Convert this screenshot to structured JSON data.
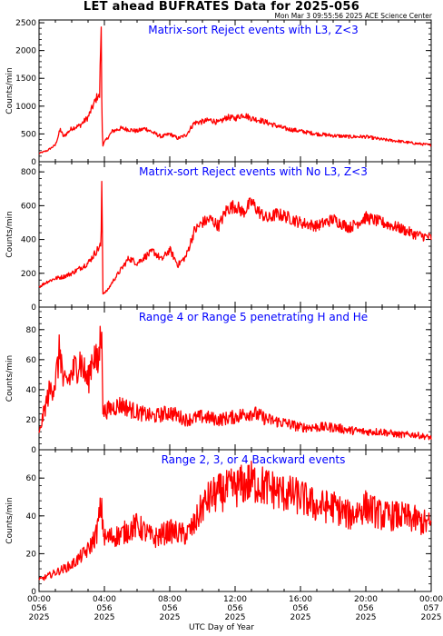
{
  "title": "LET ahead BUFRATES Data for 2025-056",
  "timestamp": "Mon Mar  3 09:55:56 2025 ACE Science Center",
  "xaxis_title": "UTC Day of Year",
  "colors": {
    "trace": "#ff0000",
    "panel_title": "#0000ff",
    "axes": "#000000",
    "background": "#ffffff"
  },
  "chart_data": [
    {
      "type": "line",
      "title": "Matrix-sort Reject events with L3, Z<3",
      "ylabel": "Counts/min",
      "ylim": [
        0,
        2550
      ],
      "yticks": [
        0,
        500,
        1000,
        1500,
        2000,
        2500
      ],
      "x_unit": "hours UTC",
      "x": [
        0,
        0.5,
        1,
        1.3,
        1.5,
        2,
        2.5,
        3,
        3.3,
        3.6,
        3.7,
        3.8,
        3.85,
        3.9,
        4,
        4.5,
        5,
        5.5,
        6,
        6.5,
        7,
        7.5,
        8,
        8.5,
        9,
        9.5,
        10,
        10.5,
        11,
        11.5,
        12,
        12.5,
        13,
        13.5,
        14,
        14.5,
        15,
        16,
        17,
        18,
        19,
        20,
        21,
        22,
        23,
        24
      ],
      "values": [
        150,
        200,
        300,
        580,
        450,
        600,
        650,
        800,
        1000,
        1200,
        1150,
        2520,
        800,
        300,
        350,
        550,
        600,
        580,
        550,
        600,
        520,
        450,
        500,
        420,
        480,
        700,
        720,
        750,
        700,
        800,
        780,
        850,
        780,
        750,
        700,
        650,
        600,
        550,
        500,
        470,
        450,
        450,
        400,
        370,
        330,
        300
      ]
    },
    {
      "type": "line",
      "title": "Matrix-sort Reject events with No L3, Z<3",
      "ylabel": "Counts/min",
      "ylim": [
        0,
        860
      ],
      "yticks": [
        0,
        200,
        400,
        600,
        800
      ],
      "x_unit": "hours UTC",
      "x": [
        0,
        0.5,
        1,
        1.5,
        2,
        2.5,
        3,
        3.5,
        3.8,
        3.85,
        3.9,
        4.2,
        4.5,
        5,
        5.5,
        6,
        6.5,
        7,
        7.5,
        8,
        8.5,
        9,
        9.5,
        10,
        10.5,
        11,
        11.5,
        12,
        12.5,
        13,
        13.5,
        14,
        14.5,
        15,
        16,
        17,
        18,
        19,
        20,
        21,
        22,
        23,
        24
      ],
      "values": [
        120,
        150,
        170,
        180,
        200,
        230,
        260,
        330,
        370,
        850,
        80,
        100,
        150,
        220,
        290,
        260,
        300,
        330,
        280,
        340,
        250,
        300,
        450,
        500,
        520,
        480,
        580,
        600,
        560,
        620,
        560,
        520,
        550,
        540,
        500,
        480,
        520,
        470,
        530,
        500,
        470,
        430,
        410
      ]
    },
    {
      "type": "line",
      "title": "Range 4 or Range 5 penetrating H and He",
      "ylabel": "Counts/min",
      "ylim": [
        0,
        95
      ],
      "yticks": [
        0,
        20,
        40,
        60,
        80
      ],
      "x_unit": "hours UTC",
      "x": [
        0,
        0.3,
        0.6,
        1,
        1.3,
        1.5,
        2,
        2.5,
        3,
        3.3,
        3.6,
        3.8,
        3.85,
        3.9,
        4.5,
        5,
        6,
        7,
        8,
        9,
        10,
        11,
        12,
        13,
        14,
        15,
        16,
        17,
        18,
        19,
        20,
        21,
        22,
        23,
        24
      ],
      "values": [
        10,
        25,
        38,
        45,
        68,
        42,
        50,
        60,
        45,
        65,
        55,
        80,
        95,
        25,
        28,
        30,
        25,
        22,
        25,
        20,
        22,
        20,
        22,
        25,
        20,
        18,
        15,
        15,
        15,
        13,
        12,
        12,
        10,
        10,
        8
      ]
    },
    {
      "type": "line",
      "title": "Range 2, 3, or 4 Backward events",
      "ylabel": "Counts/min",
      "ylim": [
        0,
        75
      ],
      "yticks": [
        0,
        20,
        40,
        60
      ],
      "x_unit": "hours UTC",
      "x": [
        0,
        1,
        2,
        3,
        3.5,
        3.8,
        4,
        5,
        6,
        7,
        8,
        9,
        9.5,
        10,
        10.5,
        11,
        12,
        13,
        14,
        15,
        16,
        17,
        18,
        19,
        20,
        21,
        22,
        23,
        24
      ],
      "values": [
        6,
        10,
        14,
        22,
        30,
        45,
        28,
        30,
        35,
        28,
        32,
        30,
        35,
        45,
        50,
        52,
        55,
        58,
        55,
        52,
        50,
        45,
        45,
        40,
        45,
        40,
        40,
        38,
        35
      ]
    }
  ],
  "x_ticks": [
    {
      "time": "00:00",
      "doy": "056",
      "year": "2025"
    },
    {
      "time": "04:00",
      "doy": "056",
      "year": "2025"
    },
    {
      "time": "08:00",
      "doy": "056",
      "year": "2025"
    },
    {
      "time": "12:00",
      "doy": "056",
      "year": "2025"
    },
    {
      "time": "16:00",
      "doy": "056",
      "year": "2025"
    },
    {
      "time": "20:00",
      "doy": "056",
      "year": "2025"
    },
    {
      "time": "00:00",
      "doy": "057",
      "year": "2025"
    }
  ]
}
